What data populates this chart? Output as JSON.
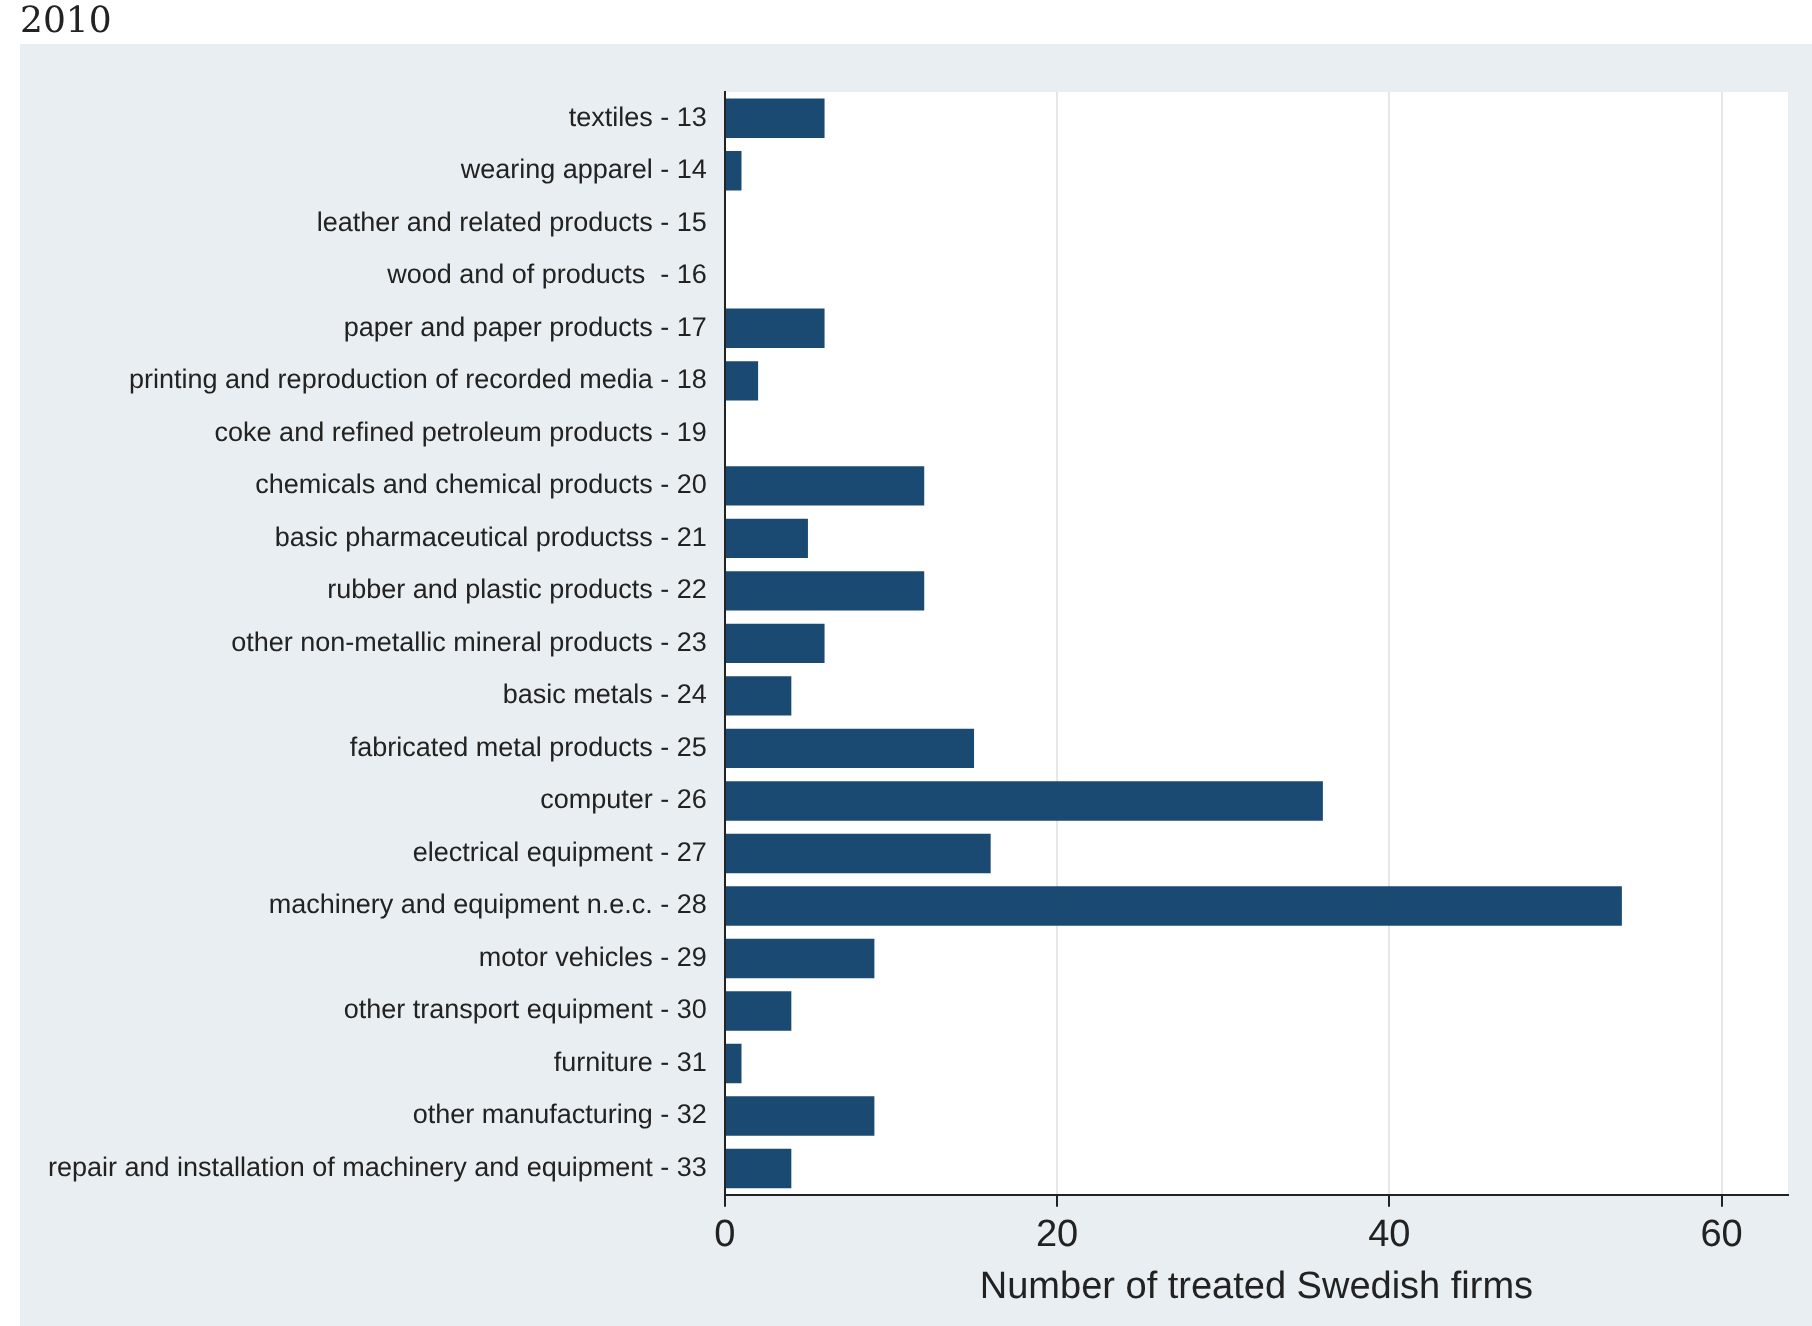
{
  "chart_data": {
    "type": "bar",
    "orientation": "horizontal",
    "annotations": [
      "2010"
    ],
    "xlabel": "Number of treated Swedish firms",
    "categories": [
      "textiles - 13",
      "wearing apparel - 14",
      "leather and related products - 15",
      "wood and of products  - 16",
      "paper and paper products - 17",
      "printing and reproduction of recorded media - 18",
      "coke and refined petroleum products - 19",
      "chemicals and chemical products - 20",
      "basic pharmaceutical productss - 21",
      "rubber and plastic products - 22",
      "other non-metallic mineral products - 23",
      "basic metals - 24",
      "fabricated metal products - 25",
      "computer - 26",
      "electrical equipment - 27",
      "machinery and equipment n.e.c. - 28",
      "motor vehicles - 29",
      "other transport equipment - 30",
      "furniture - 31",
      "other manufacturing - 32",
      "repair and installation of machinery and equipment - 33"
    ],
    "values": [
      6,
      1,
      0,
      0,
      6,
      2,
      0,
      12,
      5,
      12,
      6,
      4,
      15,
      36,
      16,
      54,
      9,
      4,
      1,
      9,
      4
    ],
    "color": "#1a4a72",
    "xlim": [
      0,
      64
    ],
    "xticks": [
      0,
      20,
      40,
      60
    ],
    "grid": "x"
  }
}
